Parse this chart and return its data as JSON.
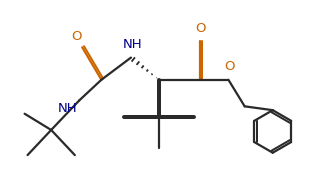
{
  "bg_color": "#ffffff",
  "line_color": "#2a2a2a",
  "o_color": "#cc6600",
  "n_color": "#00008b",
  "bond_lw": 1.6,
  "font_size": 9.5,
  "figsize": [
    3.18,
    1.92
  ],
  "dpi": 100,
  "xlim": [
    0,
    10
  ],
  "ylim": [
    0,
    6.5
  ]
}
